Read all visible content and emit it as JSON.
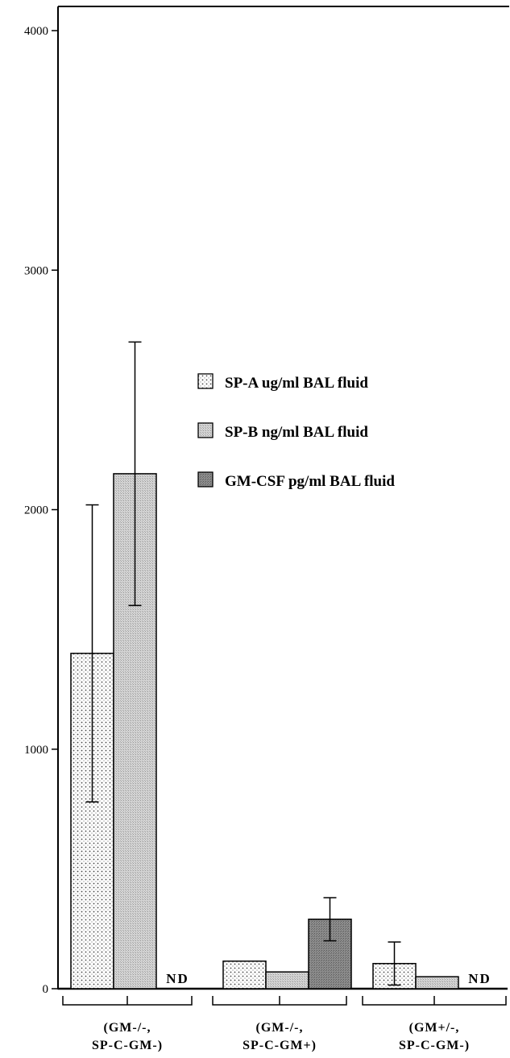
{
  "chart_data": {
    "type": "bar",
    "title": "",
    "xlabel": "",
    "ylabel": "",
    "ylim": [
      0,
      4100
    ],
    "yticks": [
      0,
      1000,
      2000,
      3000,
      4000
    ],
    "yticklabels": [
      "0",
      "1000",
      "2000",
      "3000",
      "4000"
    ],
    "categories": [
      [
        "(GM-/-,",
        "SP-C-GM-)"
      ],
      [
        "(GM-/-,",
        "SP-C-GM+)"
      ],
      [
        "(GM+/-,",
        "SP-C-GM-)"
      ]
    ],
    "series": [
      {
        "name": "SP-A ug/ml BAL fluid",
        "values": [
          1400,
          115,
          105
        ],
        "error": [
          620,
          0,
          90
        ],
        "pattern": "dots"
      },
      {
        "name": "SP-B ng/ml BAL fluid",
        "values": [
          2150,
          70,
          50
        ],
        "error": [
          550,
          0,
          0
        ],
        "pattern": "light"
      },
      {
        "name": "GM-CSF pg/ml BAL fluid",
        "values": [
          null,
          290,
          null
        ],
        "error": [
          0,
          90,
          0
        ],
        "pattern": "dark"
      }
    ],
    "annotations": [
      {
        "text": "ND",
        "category": 0
      },
      {
        "text": "ND",
        "category": 2
      }
    ],
    "legend_position": "center-right",
    "grid": false
  }
}
